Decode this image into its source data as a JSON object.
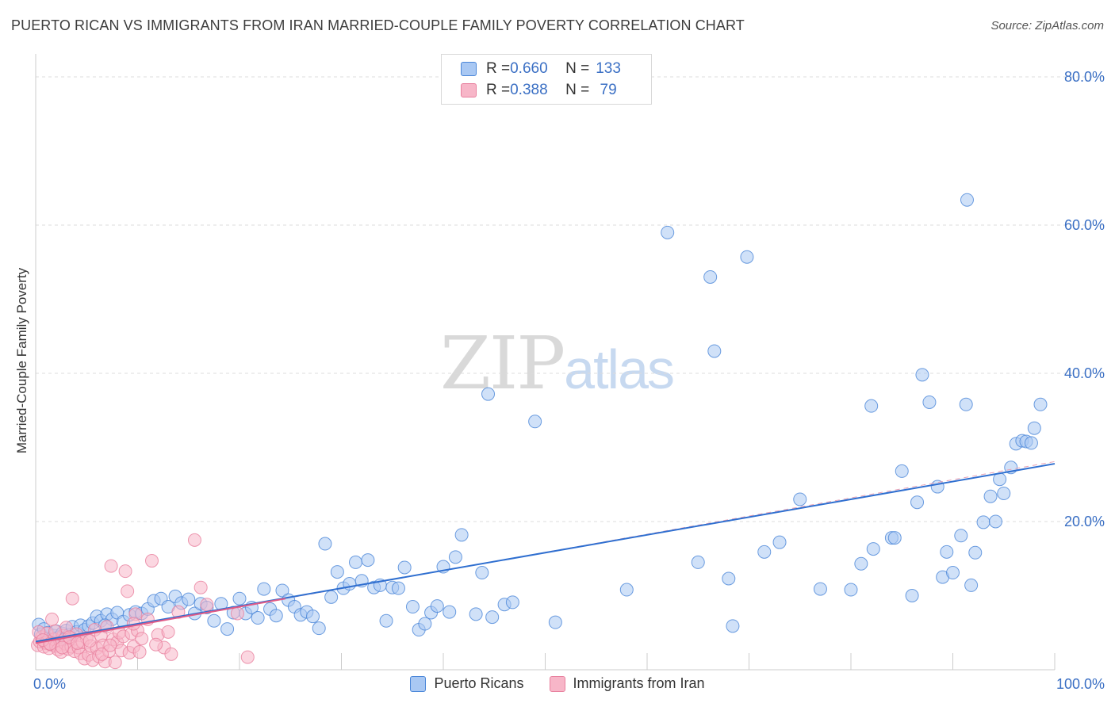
{
  "header": {
    "title": "PUERTO RICAN VS IMMIGRANTS FROM IRAN MARRIED-COUPLE FAMILY POVERTY CORRELATION CHART",
    "source": "Source: ZipAtlas.com"
  },
  "watermark": {
    "zip": "ZIP",
    "atlas": "atlas"
  },
  "legend": {
    "rows": [
      {
        "r_label": "R = ",
        "r_value": "0.660",
        "n_label": "N = ",
        "n_value": "133",
        "color": "#a9c8f3"
      },
      {
        "r_label": "R = ",
        "r_value": "0.388",
        "n_label": "N = ",
        "n_value": " 79",
        "color": "#f7b6c8"
      }
    ]
  },
  "bottom_legend": {
    "items": [
      {
        "label": "Puerto Ricans",
        "color": "#a9c8f3"
      },
      {
        "label": "Immigrants from Iran",
        "color": "#f7b6c8"
      }
    ]
  },
  "chart_data": {
    "type": "scatter",
    "title": "PUERTO RICAN VS IMMIGRANTS FROM IRAN MARRIED-COUPLE FAMILY POVERTY CORRELATION CHART",
    "ylabel": "Married-Couple Family Poverty",
    "xlabel": "",
    "xlim": [
      0,
      100
    ],
    "ylim": [
      0,
      82
    ],
    "x_tick_labels": [
      "0.0%",
      "100.0%"
    ],
    "y_ticks": [
      20,
      40,
      60,
      80
    ],
    "y_tick_labels": [
      "20.0%",
      "40.0%",
      "60.0%",
      "80.0%"
    ],
    "grid": true,
    "series": [
      {
        "name": "Puerto Ricans",
        "color": "#4a86d8",
        "fill": "#a9c8f3",
        "trend": {
          "x": [
            0,
            100
          ],
          "y": [
            3.8,
            27.8
          ]
        },
        "points": [
          [
            0.3,
            6.1
          ],
          [
            0.5,
            4.8
          ],
          [
            0.8,
            5.5
          ],
          [
            1.0,
            4.2
          ],
          [
            1.2,
            5.0
          ],
          [
            1.5,
            3.9
          ],
          [
            1.8,
            4.6
          ],
          [
            2.0,
            5.2
          ],
          [
            2.3,
            4.4
          ],
          [
            2.6,
            4.9
          ],
          [
            3.0,
            5.3
          ],
          [
            3.3,
            4.7
          ],
          [
            3.6,
            5.8
          ],
          [
            4.0,
            5.1
          ],
          [
            4.4,
            6.0
          ],
          [
            4.8,
            5.4
          ],
          [
            5.2,
            5.9
          ],
          [
            5.6,
            6.3
          ],
          [
            6.0,
            7.2
          ],
          [
            6.4,
            6.6
          ],
          [
            7.0,
            7.5
          ],
          [
            7.5,
            6.8
          ],
          [
            8.0,
            7.7
          ],
          [
            8.6,
            6.5
          ],
          [
            9.2,
            7.4
          ],
          [
            9.8,
            7.8
          ],
          [
            10.4,
            7.6
          ],
          [
            11.0,
            8.2
          ],
          [
            11.6,
            9.3
          ],
          [
            12.3,
            9.6
          ],
          [
            13.0,
            8.5
          ],
          [
            13.7,
            9.9
          ],
          [
            14.3,
            9.0
          ],
          [
            15.0,
            9.5
          ],
          [
            15.6,
            7.6
          ],
          [
            16.2,
            8.9
          ],
          [
            16.8,
            8.4
          ],
          [
            17.5,
            6.6
          ],
          [
            18.2,
            8.9
          ],
          [
            18.8,
            5.5
          ],
          [
            19.4,
            7.7
          ],
          [
            20.0,
            9.6
          ],
          [
            20.6,
            7.6
          ],
          [
            21.2,
            8.4
          ],
          [
            21.8,
            7.0
          ],
          [
            22.4,
            10.9
          ],
          [
            23.0,
            8.2
          ],
          [
            23.6,
            7.3
          ],
          [
            24.2,
            10.7
          ],
          [
            24.8,
            9.4
          ],
          [
            25.4,
            8.5
          ],
          [
            26.0,
            7.4
          ],
          [
            26.6,
            7.8
          ],
          [
            27.2,
            7.2
          ],
          [
            27.8,
            5.6
          ],
          [
            28.4,
            17.0
          ],
          [
            29.0,
            9.8
          ],
          [
            29.6,
            13.2
          ],
          [
            30.2,
            11.0
          ],
          [
            30.8,
            11.6
          ],
          [
            31.4,
            14.5
          ],
          [
            32.0,
            12.0
          ],
          [
            32.6,
            14.8
          ],
          [
            33.2,
            11.1
          ],
          [
            33.8,
            11.4
          ],
          [
            34.4,
            6.6
          ],
          [
            35.0,
            11.1
          ],
          [
            35.6,
            11.0
          ],
          [
            36.2,
            13.8
          ],
          [
            37.0,
            8.5
          ],
          [
            37.6,
            5.4
          ],
          [
            38.2,
            6.2
          ],
          [
            38.8,
            7.7
          ],
          [
            39.4,
            8.6
          ],
          [
            40.0,
            13.9
          ],
          [
            40.6,
            7.8
          ],
          [
            41.2,
            15.2
          ],
          [
            41.8,
            18.2
          ],
          [
            43.2,
            7.5
          ],
          [
            43.8,
            13.1
          ],
          [
            44.4,
            37.2
          ],
          [
            44.8,
            7.1
          ],
          [
            46.0,
            8.8
          ],
          [
            46.8,
            9.1
          ],
          [
            49.0,
            33.5
          ],
          [
            51.0,
            6.4
          ],
          [
            58.0,
            10.8
          ],
          [
            62.0,
            59.0
          ],
          [
            65.0,
            14.5
          ],
          [
            66.2,
            53.0
          ],
          [
            66.6,
            43.0
          ],
          [
            68.0,
            12.3
          ],
          [
            68.4,
            5.9
          ],
          [
            69.8,
            55.7
          ],
          [
            71.5,
            15.9
          ],
          [
            73.0,
            17.2
          ],
          [
            75.0,
            23.0
          ],
          [
            77.0,
            10.9
          ],
          [
            80.0,
            10.8
          ],
          [
            81.0,
            14.3
          ],
          [
            82.0,
            35.6
          ],
          [
            82.2,
            16.3
          ],
          [
            84.0,
            17.8
          ],
          [
            84.3,
            17.8
          ],
          [
            85.0,
            26.8
          ],
          [
            86.0,
            10.0
          ],
          [
            86.5,
            22.6
          ],
          [
            87.0,
            39.8
          ],
          [
            87.7,
            36.1
          ],
          [
            88.5,
            24.7
          ],
          [
            89.0,
            12.5
          ],
          [
            89.4,
            15.9
          ],
          [
            90.0,
            13.1
          ],
          [
            90.8,
            18.1
          ],
          [
            91.3,
            35.8
          ],
          [
            91.8,
            11.4
          ],
          [
            92.2,
            15.8
          ],
          [
            93.0,
            19.9
          ],
          [
            93.7,
            23.4
          ],
          [
            94.2,
            20.0
          ],
          [
            94.6,
            25.7
          ],
          [
            95.0,
            23.8
          ],
          [
            95.7,
            27.3
          ],
          [
            96.2,
            30.5
          ],
          [
            96.8,
            30.9
          ],
          [
            97.2,
            30.8
          ],
          [
            97.7,
            30.6
          ],
          [
            98.0,
            32.6
          ],
          [
            98.6,
            35.8
          ],
          [
            91.4,
            63.4
          ],
          [
            1.6,
            3.6
          ],
          [
            2.8,
            4.1
          ],
          [
            6.8,
            6.0
          ]
        ]
      },
      {
        "name": "Immigrants from Iran",
        "color": "#e8809e",
        "fill": "#f7b6c8",
        "trend": {
          "x": [
            0,
            24.5
          ],
          "y": [
            3.6,
            9.6
          ]
        },
        "points": [
          [
            0.2,
            3.3
          ],
          [
            0.4,
            3.8
          ],
          [
            0.6,
            4.4
          ],
          [
            0.8,
            3.1
          ],
          [
            1.0,
            3.6
          ],
          [
            1.1,
            4.9
          ],
          [
            1.3,
            2.9
          ],
          [
            1.5,
            3.4
          ],
          [
            1.6,
            6.8
          ],
          [
            1.8,
            4.1
          ],
          [
            2.0,
            3.2
          ],
          [
            2.2,
            2.7
          ],
          [
            2.4,
            3.9
          ],
          [
            2.5,
            2.4
          ],
          [
            2.7,
            4.6
          ],
          [
            2.9,
            3.5
          ],
          [
            3.0,
            5.7
          ],
          [
            3.2,
            2.8
          ],
          [
            3.4,
            4.2
          ],
          [
            3.5,
            3.1
          ],
          [
            3.6,
            9.6
          ],
          [
            3.8,
            2.5
          ],
          [
            4.0,
            4.8
          ],
          [
            4.2,
            3.0
          ],
          [
            4.4,
            2.2
          ],
          [
            4.6,
            3.7
          ],
          [
            4.8,
            1.5
          ],
          [
            5.0,
            4.3
          ],
          [
            5.2,
            2.0
          ],
          [
            5.4,
            3.2
          ],
          [
            5.6,
            1.3
          ],
          [
            5.8,
            5.4
          ],
          [
            6.0,
            2.9
          ],
          [
            6.2,
            1.8
          ],
          [
            6.4,
            4.6
          ],
          [
            6.6,
            3.3
          ],
          [
            6.8,
            1.1
          ],
          [
            7.0,
            5.8
          ],
          [
            7.2,
            2.5
          ],
          [
            7.4,
            14.0
          ],
          [
            7.6,
            4.1
          ],
          [
            7.8,
            1.0
          ],
          [
            8.0,
            3.7
          ],
          [
            8.2,
            5.0
          ],
          [
            8.4,
            2.6
          ],
          [
            8.6,
            4.5
          ],
          [
            8.8,
            13.3
          ],
          [
            9.0,
            10.6
          ],
          [
            9.2,
            2.3
          ],
          [
            9.4,
            4.9
          ],
          [
            9.6,
            3.1
          ],
          [
            9.8,
            7.5
          ],
          [
            10.0,
            5.3
          ],
          [
            10.2,
            2.4
          ],
          [
            10.4,
            4.2
          ],
          [
            11.0,
            6.8
          ],
          [
            11.4,
            14.7
          ],
          [
            12.0,
            4.7
          ],
          [
            12.6,
            3.0
          ],
          [
            13.0,
            5.1
          ],
          [
            13.3,
            2.1
          ],
          [
            14.0,
            7.8
          ],
          [
            15.6,
            17.5
          ],
          [
            16.2,
            11.1
          ],
          [
            16.8,
            8.8
          ],
          [
            19.8,
            7.6
          ],
          [
            20.8,
            1.7
          ],
          [
            0.3,
            5.1
          ],
          [
            0.7,
            4.0
          ],
          [
            1.4,
            3.5
          ],
          [
            1.9,
            5.2
          ],
          [
            2.6,
            3.0
          ],
          [
            3.3,
            4.4
          ],
          [
            4.1,
            3.6
          ],
          [
            5.3,
            3.9
          ],
          [
            6.5,
            2.1
          ],
          [
            7.3,
            3.3
          ],
          [
            9.6,
            6.2
          ],
          [
            11.8,
            3.4
          ]
        ]
      }
    ]
  }
}
